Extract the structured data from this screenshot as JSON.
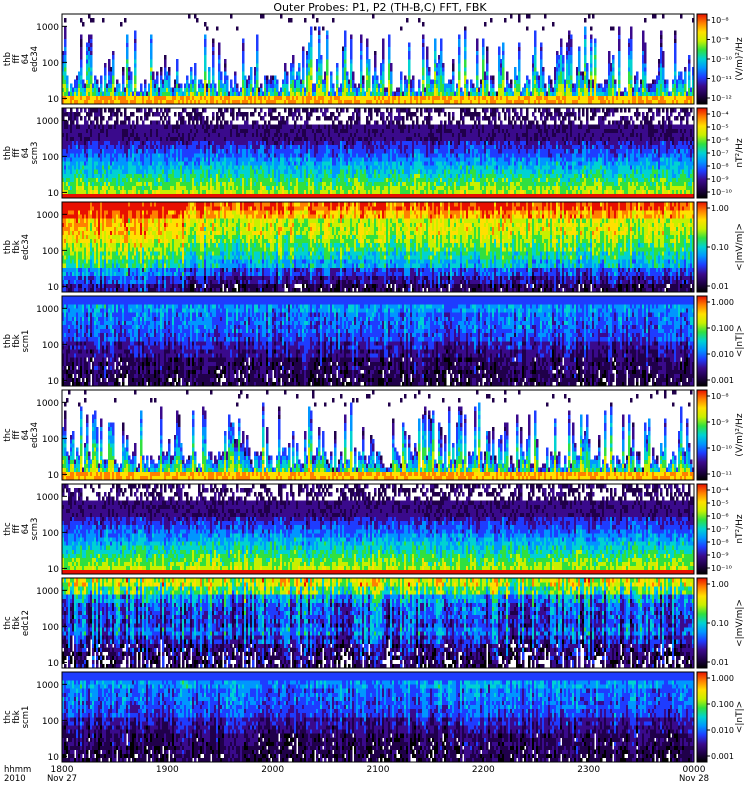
{
  "chart_data": {
    "type": "heatmap",
    "title": "Outer Probes: P1, P2 (TH-B,C) FFT, FBK",
    "time_axis": {
      "row_labels": [
        "hhmm",
        "2010"
      ],
      "ticks": [
        {
          "label": "1800",
          "sub": "Nov 27"
        },
        {
          "label": "1900",
          "sub": ""
        },
        {
          "label": "2000",
          "sub": ""
        },
        {
          "label": "2100",
          "sub": ""
        },
        {
          "label": "2200",
          "sub": ""
        },
        {
          "label": "2300",
          "sub": ""
        },
        {
          "label": "0000",
          "sub": "Nov 28"
        }
      ]
    },
    "panels": [
      {
        "ylabel": [
          "thb",
          "fff",
          "64",
          "edc34"
        ],
        "yticks": [
          "1000",
          "100",
          "10"
        ],
        "colorbar_label": "(V/m)²/Hz",
        "colorbar_ticks": [
          "10⁻⁸",
          "10⁻⁹",
          "10⁻¹⁰",
          "10⁻¹¹",
          "10⁻¹²"
        ],
        "pattern": "bursty-e"
      },
      {
        "ylabel": [
          "thb",
          "fff",
          "64",
          "scm3"
        ],
        "yticks": [
          "1000",
          "100",
          "10"
        ],
        "colorbar_label": "nT²/Hz",
        "colorbar_ticks": [
          "10⁻⁴",
          "10⁻⁵",
          "10⁻⁶",
          "10⁻⁷",
          "10⁻⁸",
          "10⁻⁹",
          "10⁻¹⁰"
        ],
        "pattern": "scm-fft"
      },
      {
        "ylabel": [
          "thb",
          "fbk",
          "edc34"
        ],
        "yticks": [
          "1000",
          "100",
          "10"
        ],
        "colorbar_label": "<|mV/m|>",
        "colorbar_ticks": [
          "1.00",
          "0.10",
          "0.01"
        ],
        "pattern": "fbk-e-strong"
      },
      {
        "ylabel": [
          "thb",
          "fbk",
          "scm1"
        ],
        "yticks": [
          "1000",
          "100",
          "10"
        ],
        "colorbar_label": "<|nT|>",
        "colorbar_ticks": [
          "1.000",
          "0.100",
          "0.010",
          "0.001"
        ],
        "pattern": "fbk-b"
      },
      {
        "ylabel": [
          "thc",
          "fff",
          "64",
          "edc34"
        ],
        "yticks": [
          "1000",
          "100",
          "10"
        ],
        "colorbar_label": "(V/m)²/Hz",
        "colorbar_ticks": [
          "10⁻⁸",
          "10⁻⁹",
          "10⁻¹⁰",
          "10⁻¹¹"
        ],
        "pattern": "bursty-e"
      },
      {
        "ylabel": [
          "thc",
          "fff",
          "64",
          "scm3"
        ],
        "yticks": [
          "1000",
          "100",
          "10"
        ],
        "colorbar_label": "nT²/Hz",
        "colorbar_ticks": [
          "10⁻⁴",
          "10⁻⁵",
          "10⁻⁶",
          "10⁻⁷",
          "10⁻⁸",
          "10⁻⁹",
          "10⁻¹⁰"
        ],
        "pattern": "scm-fft"
      },
      {
        "ylabel": [
          "thc",
          "fbk",
          "edc12"
        ],
        "yticks": [
          "1000",
          "100",
          "10"
        ],
        "colorbar_label": "<|mV/m|>",
        "colorbar_ticks": [
          "1.00",
          "0.10",
          "0.01"
        ],
        "pattern": "fbk-e"
      },
      {
        "ylabel": [
          "thc",
          "fbk",
          "scm1"
        ],
        "yticks": [
          "1000",
          "100",
          "10"
        ],
        "colorbar_label": "<|nT|>",
        "colorbar_ticks": [
          "1.000",
          "0.100",
          "0.010",
          "0.001"
        ],
        "pattern": "fbk-b"
      }
    ],
    "colormap": [
      "#000000",
      "#20004a",
      "#3a0a8c",
      "#1e3cff",
      "#0096ff",
      "#00d2d2",
      "#30e040",
      "#c8f000",
      "#ffe000",
      "#ff8000",
      "#e81000"
    ],
    "grid": false,
    "legend": "none"
  }
}
